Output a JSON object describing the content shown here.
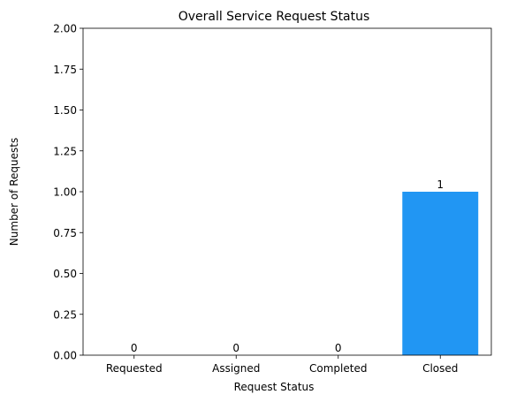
{
  "chart_data": {
    "type": "bar",
    "title": "Overall Service Request Status",
    "xlabel": "Request Status",
    "ylabel": "Number of Requests",
    "categories": [
      "Requested",
      "Assigned",
      "Completed",
      "Closed"
    ],
    "values": [
      0,
      0,
      0,
      1
    ],
    "ylim": [
      0,
      2
    ],
    "yticks": [
      "0.00",
      "0.25",
      "0.50",
      "0.75",
      "1.00",
      "1.25",
      "1.50",
      "1.75",
      "2.00"
    ],
    "bar_color": "#2196F3",
    "grid": false,
    "legend": "none"
  }
}
